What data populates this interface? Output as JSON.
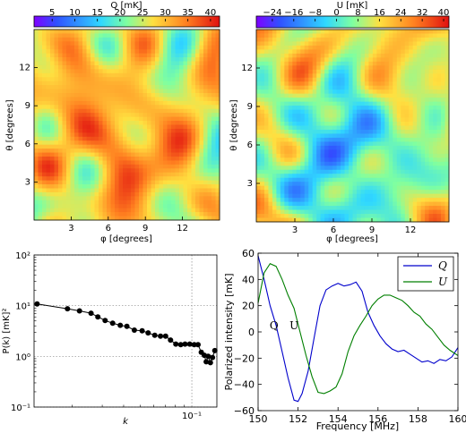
{
  "chart_data": [
    {
      "type": "heatmap",
      "colorbar_label": "Q [mK]",
      "colorbar_ticks": [
        5,
        10,
        15,
        20,
        25,
        30,
        35,
        40
      ],
      "colorbar_range": [
        1,
        42
      ],
      "xlabel": "φ [degrees]",
      "ylabel": "θ [degrees]",
      "xticks": [
        3,
        6,
        9,
        12
      ],
      "yticks": [
        3,
        6,
        9,
        12
      ],
      "xlim": [
        0,
        15
      ],
      "ylim": [
        0,
        15
      ],
      "colormap": "jet"
    },
    {
      "type": "heatmap",
      "colorbar_label": "U [mK]",
      "colorbar_ticks": [
        -24,
        -16,
        -8,
        0,
        8,
        16,
        24,
        32,
        40
      ],
      "colorbar_range": [
        -30,
        42
      ],
      "xlabel": "φ [degrees]",
      "ylabel": "θ [degrees]",
      "xticks": [
        3,
        6,
        9,
        12
      ],
      "yticks": [
        3,
        6,
        9,
        12
      ],
      "xlim": [
        0,
        15
      ],
      "ylim": [
        0,
        15
      ],
      "colormap": "jet"
    },
    {
      "type": "line",
      "xlabel": "k",
      "ylabel": "P(k) [mK]²",
      "xscale": "log",
      "yscale": "log",
      "xlim": [
        0.012,
        0.14
      ],
      "ylim": [
        0.1,
        100
      ],
      "xticks": [
        {
          "value": 0.1,
          "label": "10⁻¹"
        }
      ],
      "yticks": [
        {
          "value": 0.1,
          "label": "10⁻¹"
        },
        {
          "value": 1,
          "label": "10⁰"
        },
        {
          "value": 10,
          "label": "10¹"
        },
        {
          "value": 100,
          "label": "10²"
        }
      ],
      "grid": true,
      "color": "#000000",
      "x": [
        0.0125,
        0.0188,
        0.0221,
        0.0258,
        0.0283,
        0.0312,
        0.0345,
        0.0382,
        0.0418,
        0.0462,
        0.0513,
        0.0556,
        0.0608,
        0.0656,
        0.0703,
        0.0751,
        0.0806,
        0.0862,
        0.0913,
        0.0972,
        0.1034,
        0.1087,
        0.1136,
        0.1183,
        0.1213,
        0.1245,
        0.1283,
        0.132,
        0.1362
      ],
      "y": [
        10.8,
        8.7,
        7.9,
        7.1,
        6.0,
        5.1,
        4.5,
        4.1,
        3.9,
        3.3,
        3.2,
        2.9,
        2.6,
        2.5,
        2.5,
        2.1,
        1.75,
        1.7,
        1.75,
        1.75,
        1.7,
        1.7,
        1.2,
        1.05,
        0.78,
        1.0,
        0.75,
        0.95,
        1.3
      ]
    },
    {
      "type": "line",
      "xlabel": "Frequency [MHz]",
      "ylabel": "Polarized intensity [mK]",
      "xlim": [
        150,
        160
      ],
      "ylim": [
        -60,
        60
      ],
      "xticks": [
        150,
        152,
        154,
        156,
        158,
        160
      ],
      "yticks": [
        -60,
        -40,
        -20,
        0,
        20,
        40,
        60
      ],
      "legend_position": "top-right",
      "annotations": [
        {
          "text": "Q",
          "x": 150.8,
          "y": 2
        },
        {
          "text": "U",
          "x": 151.8,
          "y": 2
        }
      ],
      "series": [
        {
          "name": "Q",
          "color": "#0000cc",
          "x": [
            150.0,
            150.3,
            150.6,
            150.9,
            151.2,
            151.5,
            151.8,
            152.0,
            152.2,
            152.5,
            152.8,
            153.1,
            153.4,
            153.7,
            154.0,
            154.3,
            154.6,
            154.9,
            155.2,
            155.5,
            155.8,
            156.1,
            156.4,
            156.7,
            157.0,
            157.3,
            157.6,
            157.9,
            158.2,
            158.5,
            158.8,
            159.1,
            159.4,
            159.7,
            160.0
          ],
          "y": [
            58,
            40,
            20,
            5,
            -15,
            -35,
            -52,
            -53,
            -47,
            -30,
            -5,
            20,
            32,
            35,
            37,
            35,
            36,
            38,
            31,
            15,
            5,
            -3,
            -9,
            -13,
            -15,
            -14,
            -17,
            -20,
            -23,
            -22,
            -24,
            -21,
            -22,
            -19,
            -12
          ]
        },
        {
          "name": "U",
          "color": "#007f00",
          "x": [
            150.0,
            150.3,
            150.6,
            150.9,
            151.2,
            151.5,
            151.8,
            152.1,
            152.4,
            152.7,
            153.0,
            153.3,
            153.6,
            153.9,
            154.2,
            154.5,
            154.8,
            155.1,
            155.4,
            155.7,
            156.0,
            156.3,
            156.6,
            156.9,
            157.2,
            157.5,
            157.8,
            158.1,
            158.4,
            158.7,
            159.0,
            159.3,
            159.6,
            160.0
          ],
          "y": [
            22,
            45,
            52,
            50,
            40,
            28,
            18,
            0,
            -18,
            -34,
            -46,
            -47,
            -45,
            -42,
            -32,
            -15,
            -3,
            5,
            12,
            20,
            25,
            28,
            28,
            26,
            24,
            20,
            15,
            12,
            6,
            2,
            -4,
            -10,
            -14,
            -18
          ]
        }
      ]
    }
  ]
}
